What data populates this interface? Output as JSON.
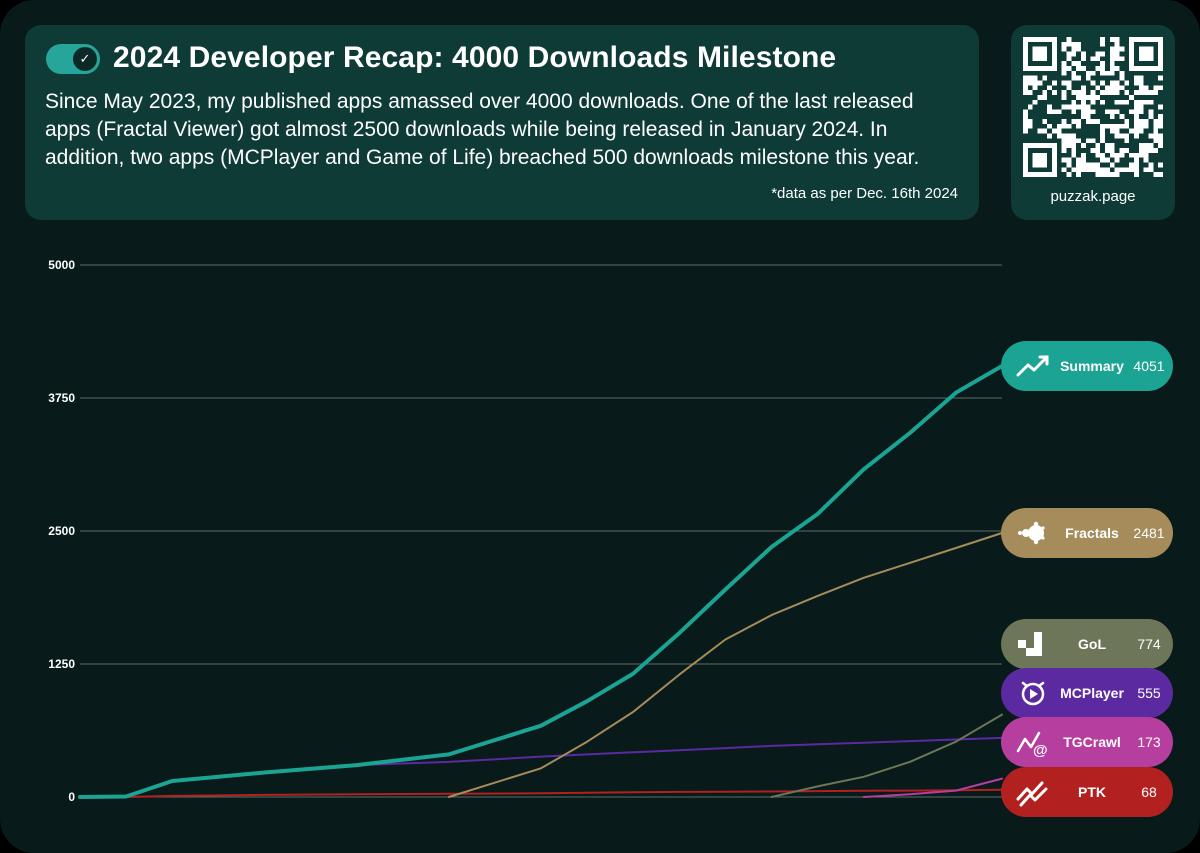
{
  "header": {
    "title": "2024 Developer Recap: 4000 Downloads Milestone",
    "description": "Since May 2023, my published apps amassed over 4000 downloads. One of the last released apps (Fractal Viewer) got almost 2500 downloads while being released in January 2024. In addition, two apps (MCPlayer and Game of Life) breached 500 downloads milestone this year.",
    "footnote": "*data as per Dec. 16th 2024",
    "toggle_icon": "checkmark-toggle-icon"
  },
  "qr": {
    "label": "puzzak.page",
    "icon": "qr-code-icon"
  },
  "chart_data": {
    "type": "line",
    "title": "",
    "xlabel": "",
    "ylabel": "",
    "x_range": [
      "May 2023",
      "Dec. 16th 2024"
    ],
    "ylim": [
      0,
      5000
    ],
    "yticks": [
      "0",
      "1250",
      "2500",
      "3750",
      "5000"
    ],
    "grid": true,
    "legend_placement": "right",
    "x": [
      0,
      5,
      10,
      20,
      30,
      40,
      50,
      55,
      60,
      65,
      70,
      75,
      80,
      85,
      90,
      95,
      100
    ],
    "series": [
      {
        "name": "Summary",
        "final_value": "4051",
        "color": "#1ba394",
        "icon": "trending-up-icon",
        "values": [
          0,
          5,
          150,
          230,
          300,
          400,
          670,
          900,
          1160,
          1540,
          1950,
          2350,
          2660,
          3080,
          3420,
          3800,
          4051
        ]
      },
      {
        "name": "Fractals",
        "final_value": "2481",
        "color": "#a68b5b",
        "icon": "mandelbrot-icon",
        "values": [
          null,
          null,
          null,
          null,
          null,
          0,
          270,
          520,
          800,
          1150,
          1480,
          1710,
          1890,
          2060,
          2200,
          2340,
          2481
        ]
      },
      {
        "name": "GoL",
        "final_value": "774",
        "color": "#6d7659",
        "icon": "glider-icon",
        "values": [
          null,
          null,
          null,
          null,
          null,
          null,
          null,
          null,
          null,
          null,
          null,
          0,
          100,
          190,
          330,
          520,
          774
        ]
      },
      {
        "name": "MCPlayer",
        "final_value": "555",
        "color": "#5b2aa0",
        "icon": "player-icon",
        "values": [
          0,
          5,
          150,
          230,
          300,
          330,
          380,
          400,
          420,
          440,
          460,
          480,
          495,
          510,
          525,
          540,
          555
        ]
      },
      {
        "name": "TGCrawl",
        "final_value": "173",
        "color": "#b63e9e",
        "icon": "crawl-icon",
        "values": [
          null,
          null,
          null,
          null,
          null,
          null,
          null,
          null,
          null,
          null,
          null,
          null,
          null,
          0,
          25,
          60,
          173
        ]
      },
      {
        "name": "PTK",
        "final_value": "68",
        "color": "#b22020",
        "icon": "ptk-icon",
        "values": [
          0,
          0,
          10,
          20,
          25,
          30,
          35,
          40,
          45,
          48,
          50,
          52,
          55,
          58,
          60,
          64,
          68
        ]
      }
    ]
  }
}
